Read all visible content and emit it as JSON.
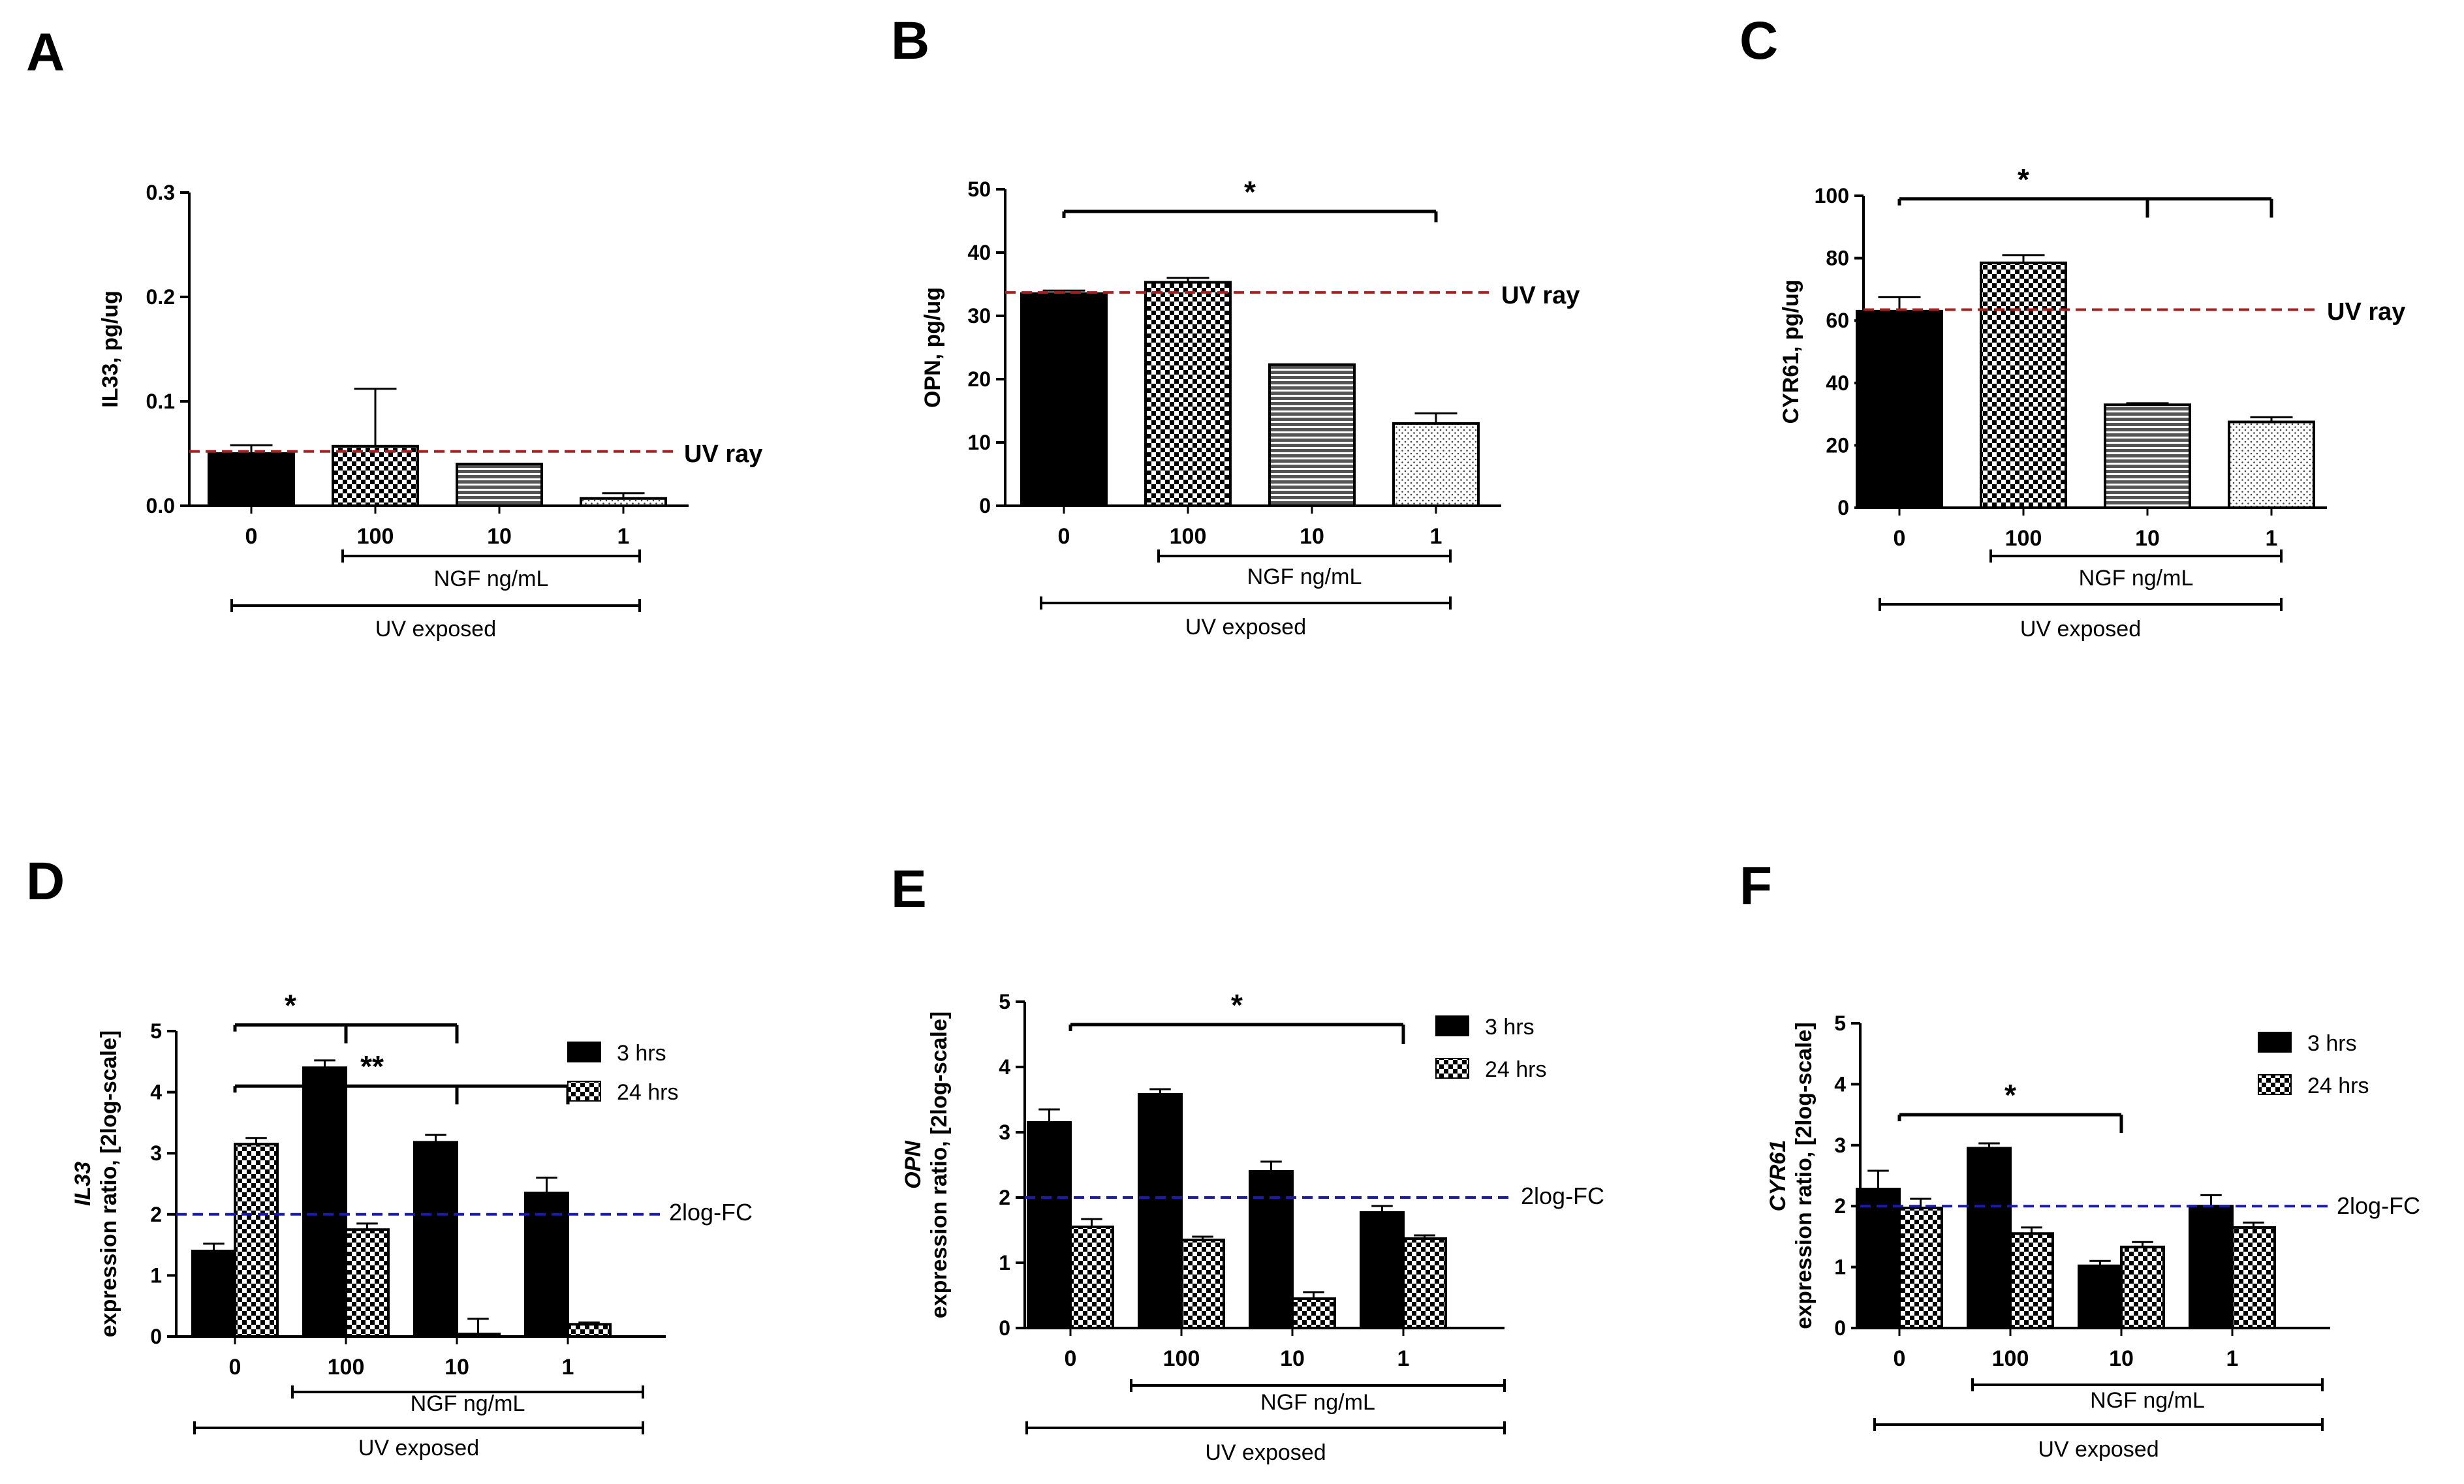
{
  "categories": [
    "0",
    "100",
    "10",
    "1"
  ],
  "colors": {
    "bar": "#000000",
    "uv_ray_line": "#a52020",
    "fc_line": "#1a1ab0",
    "axis": "#000000"
  },
  "chart_data": [
    {
      "panel": "A",
      "type": "bar",
      "series_pattern": [
        "solid",
        "checker",
        "hstripes",
        "dots"
      ],
      "ylabel": "IL33, pg/ug",
      "ylim": [
        0,
        0.3
      ],
      "yticks": [
        "0.0",
        "0.1",
        "0.2",
        "0.3"
      ],
      "values": [
        0.05,
        0.057,
        0.04,
        0.007
      ],
      "errors": [
        0.008,
        0.055,
        0.0,
        0.005
      ],
      "reference": {
        "value": 0.052,
        "label": "UV ray"
      },
      "inner_bracket": "NGF ng/mL",
      "outer_bracket": "UV exposed",
      "sig": []
    },
    {
      "panel": "B",
      "type": "bar",
      "series_pattern": [
        "solid",
        "checker",
        "hstripes",
        "dots"
      ],
      "ylabel": "OPN, pg/ug",
      "ylim": [
        0,
        50
      ],
      "yticks": [
        "0",
        "10",
        "20",
        "30",
        "40",
        "50"
      ],
      "values": [
        33.5,
        35.3,
        22.3,
        13.0
      ],
      "errors": [
        0.5,
        0.7,
        0.0,
        1.6
      ],
      "reference": {
        "value": 33.7,
        "label": "UV ray"
      },
      "inner_bracket": "NGF ng/mL",
      "outer_bracket": "UV exposed",
      "sig": [
        {
          "label": "*",
          "from": 0,
          "to": 3,
          "y": 46.5,
          "drops": [
            3
          ],
          "drop_y": 44.8
        }
      ]
    },
    {
      "panel": "C",
      "type": "bar",
      "series_pattern": [
        "solid",
        "checker",
        "hstripes",
        "dots"
      ],
      "ylabel": "CYR61, pg/ug",
      "ylim": [
        0,
        100
      ],
      "yticks": [
        "0",
        "20",
        "40",
        "60",
        "80",
        "100"
      ],
      "values": [
        63.0,
        78.5,
        33.0,
        27.5
      ],
      "errors": [
        4.5,
        2.5,
        0.5,
        1.5
      ],
      "reference": {
        "value": 63.5,
        "label": "UV ray"
      },
      "inner_bracket": "NGF ng/mL",
      "outer_bracket": "UV exposed",
      "sig": [
        {
          "label": "*",
          "from": 0,
          "to": 3,
          "y": 99,
          "drops": [
            2,
            3
          ],
          "drop_y": 93
        }
      ]
    },
    {
      "panel": "D",
      "type": "grouped_bar",
      "ylabel_italic": "IL33",
      "ylabel": "expression ratio, [2log-scale]",
      "ylim": [
        0,
        5
      ],
      "yticks": [
        "0",
        "1",
        "2",
        "3",
        "4",
        "5"
      ],
      "series": [
        {
          "name": "3 hrs",
          "pattern": "solid",
          "values": [
            1.4,
            4.4,
            3.18,
            2.35
          ],
          "errors": [
            0.12,
            0.12,
            0.12,
            0.25
          ]
        },
        {
          "name": "24 hrs",
          "pattern": "checker",
          "values": [
            3.15,
            1.75,
            0.04,
            0.2
          ],
          "errors": [
            0.1,
            0.1,
            0.25,
            0.03
          ]
        }
      ],
      "reference": {
        "value": 2.0,
        "label": "2log-FC"
      },
      "inner_bracket": "NGF ng/mL",
      "outer_bracket": "UV exposed",
      "sig": [
        {
          "label": "*",
          "from": 0,
          "to": 2,
          "y": 5.1,
          "drops": [
            1,
            2
          ],
          "drop_y": 4.8
        },
        {
          "label": "**",
          "from": 0,
          "to": 3,
          "y": 4.1,
          "drops": [
            2,
            3
          ],
          "drop_y": 3.8
        }
      ]
    },
    {
      "panel": "E",
      "type": "grouped_bar",
      "ylabel_italic": "OPN",
      "ylabel": "expression ratio, [2log-scale]",
      "ylim": [
        0,
        5
      ],
      "yticks": [
        "0",
        "1",
        "2",
        "3",
        "4",
        "5"
      ],
      "series": [
        {
          "name": "3 hrs",
          "pattern": "solid",
          "values": [
            3.15,
            3.58,
            2.4,
            1.77
          ],
          "errors": [
            0.2,
            0.08,
            0.15,
            0.1
          ]
        },
        {
          "name": "24 hrs",
          "pattern": "checker",
          "values": [
            1.55,
            1.35,
            0.45,
            1.37
          ],
          "errors": [
            0.12,
            0.05,
            0.1,
            0.05
          ]
        }
      ],
      "reference": {
        "value": 2.0,
        "label": "2log-FC"
      },
      "inner_bracket": "NGF ng/mL",
      "outer_bracket": "UV exposed",
      "sig": [
        {
          "label": "*",
          "from": 0,
          "to": 3,
          "y": 4.65,
          "drops": [
            3
          ],
          "drop_y": 4.35
        }
      ]
    },
    {
      "panel": "F",
      "type": "grouped_bar",
      "ylabel_italic": "CYR61",
      "ylabel": "expression ratio, [2log-scale]",
      "ylim": [
        0,
        5
      ],
      "yticks": [
        "0",
        "1",
        "2",
        "3",
        "4",
        "5"
      ],
      "series": [
        {
          "name": "3 hrs",
          "pattern": "solid",
          "values": [
            2.28,
            2.95,
            1.02,
            2.0
          ],
          "errors": [
            0.3,
            0.08,
            0.08,
            0.18
          ]
        },
        {
          "name": "24 hrs",
          "pattern": "checker",
          "values": [
            1.97,
            1.55,
            1.33,
            1.65
          ],
          "errors": [
            0.15,
            0.1,
            0.08,
            0.08
          ]
        }
      ],
      "reference": {
        "value": 2.0,
        "label": "2log-FC"
      },
      "inner_bracket": "NGF ng/mL",
      "outer_bracket": "UV exposed",
      "sig": [
        {
          "label": "*",
          "from": 0,
          "to": 2,
          "y": 3.5,
          "drops": [
            2
          ],
          "drop_y": 3.2
        }
      ]
    }
  ]
}
